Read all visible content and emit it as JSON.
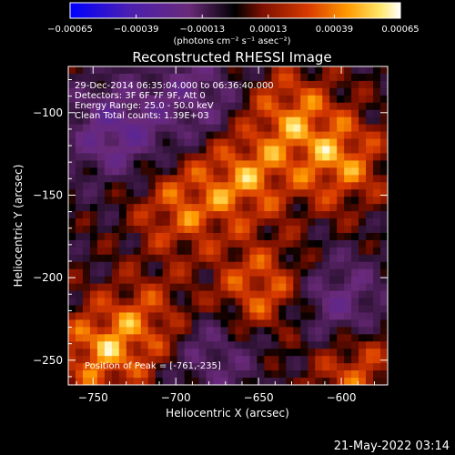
{
  "chart_data": {
    "type": "heatmap",
    "title": "Reconstructed RHESSI Image",
    "xlabel": "Heliocentric X (arcsec)",
    "ylabel": "Heliocentric Y (arcsec)",
    "xlim": [
      -765,
      -572
    ],
    "ylim": [
      -265,
      -72
    ],
    "x_ticks": [
      -750,
      -700,
      -650,
      -600
    ],
    "y_ticks": [
      -100,
      -150,
      -200,
      -250
    ],
    "x_tick_labels": [
      "−750",
      "−700",
      "−650",
      "−600"
    ],
    "y_tick_labels": [
      "−100",
      "−150",
      "−200",
      "−250"
    ],
    "colorbar": {
      "range": [
        -0.00065,
        0.00065
      ],
      "tick_labels": [
        "−0.00065",
        "−0.00039",
        "−0.00013",
        "0.00013",
        "0.00039",
        "0.00065"
      ],
      "unit_label": "(photons cm⁻² s⁻¹ asec⁻²)",
      "colors": [
        "#0000ff",
        "#4b1fb0",
        "#6a2a7a",
        "#000000",
        "#7a0f00",
        "#d83a00",
        "#ff9a00",
        "#ffe86a",
        "#ffffff"
      ]
    },
    "annotations": [
      "29-Dec-2014 06:35:04.000 to 06:36:40.000",
      "Detectors: 3F 6F 7F 9F, Att 0",
      "Energy Range: 25.0 - 50.0 keV",
      "Clean     Total counts: 1.39E+03",
      "Position of Peak = [-761,-235]"
    ],
    "peak_position": [
      -761,
      -235
    ]
  },
  "footer": {
    "timestamp": "21-May-2022 03:14"
  }
}
